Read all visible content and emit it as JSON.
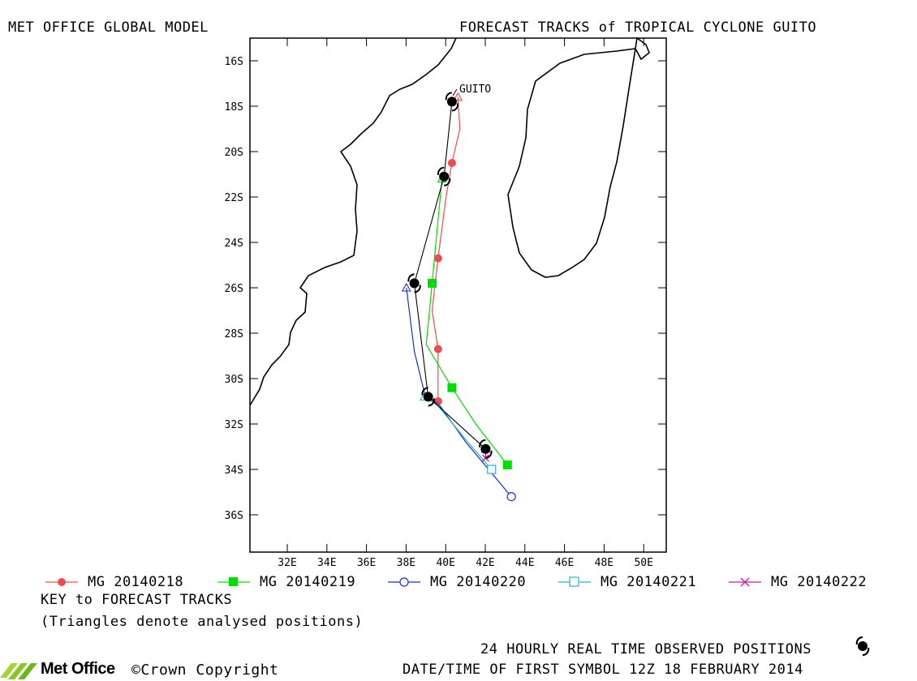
{
  "header": {
    "left_title": "MET OFFICE GLOBAL MODEL",
    "right_title": "FORECAST TRACKS of TROPICAL CYCLONE GUITO"
  },
  "map": {
    "storm_label": "GUITO",
    "lat_ticks": [
      "16S",
      "18S",
      "20S",
      "22S",
      "24S",
      "26S",
      "28S",
      "30S",
      "32S",
      "34S",
      "36S"
    ],
    "lon_ticks": [
      "32E",
      "34E",
      "36E",
      "38E",
      "40E",
      "42E",
      "44E",
      "46E",
      "48E",
      "50E"
    ],
    "lon_range": [
      30,
      52
    ],
    "lat_range": [
      -15,
      -37
    ]
  },
  "legend": {
    "items": [
      {
        "label": "MG 20140218",
        "color": "#f04a4a",
        "marker": "filled-circle"
      },
      {
        "label": "MG 20140219",
        "color": "#00dd00",
        "marker": "filled-square"
      },
      {
        "label": "MG 20140220",
        "color": "#1a2fc4",
        "marker": "open-circle"
      },
      {
        "label": "MG 20140221",
        "color": "#22b8c8",
        "marker": "open-square"
      },
      {
        "label": "MG 20140222",
        "color": "#c81a9a",
        "marker": "cross"
      }
    ],
    "key_title": "KEY to FORECAST TRACKS",
    "key_note": "(Triangles denote analysed positions)"
  },
  "footer": {
    "logo_text": "Met Office",
    "copyright": "©Crown Copyright",
    "observed_label": "24 HOURLY REAL TIME OBSERVED POSITIONS",
    "datetime_label": "DATE/TIME OF FIRST SYMBOL 12Z 18 FEBRUARY 2014"
  },
  "chart_data": {
    "type": "map-tracks",
    "observed": [
      {
        "lon": 40.3,
        "lat": -17.8
      },
      {
        "lon": 39.9,
        "lat": -21.1
      },
      {
        "lon": 38.4,
        "lat": -25.8
      },
      {
        "lon": 39.1,
        "lat": -30.8
      },
      {
        "lon": 42.0,
        "lat": -33.1
      }
    ],
    "tracks": [
      {
        "name": "MG 20140218",
        "color": "#f04a4a",
        "path": [
          [
            40.6,
            -17.6
          ],
          [
            40.7,
            -19.0
          ],
          [
            40.3,
            -20.5
          ],
          [
            40.0,
            -22.0
          ],
          [
            39.6,
            -24.7
          ],
          [
            39.3,
            -27.0
          ],
          [
            39.6,
            -28.7
          ],
          [
            39.6,
            -31.0
          ]
        ],
        "markers": [
          [
            40.3,
            -20.5
          ],
          [
            39.6,
            -24.7
          ],
          [
            39.6,
            -28.7
          ],
          [
            39.6,
            -31.0
          ]
        ]
      },
      {
        "name": "MG 20140219",
        "color": "#00dd00",
        "path": [
          [
            39.8,
            -21.2
          ],
          [
            39.6,
            -23.0
          ],
          [
            39.3,
            -25.8
          ],
          [
            39.0,
            -28.5
          ],
          [
            40.3,
            -30.4
          ],
          [
            41.5,
            -32.0
          ],
          [
            43.1,
            -33.8
          ]
        ],
        "markers": [
          [
            39.3,
            -25.8
          ],
          [
            40.3,
            -30.4
          ],
          [
            43.1,
            -33.8
          ]
        ]
      },
      {
        "name": "MG 20140220",
        "color": "#1a2fc4",
        "path": [
          [
            38.0,
            -26.0
          ],
          [
            38.4,
            -28.8
          ],
          [
            38.9,
            -30.6
          ],
          [
            39.7,
            -31.2
          ],
          [
            41.0,
            -32.8
          ],
          [
            43.3,
            -35.2
          ]
        ],
        "markers": [
          [
            43.3,
            -35.2
          ]
        ]
      },
      {
        "name": "MG 20140221",
        "color": "#22b8c8",
        "path": [
          [
            38.9,
            -30.8
          ],
          [
            39.6,
            -31.2
          ],
          [
            41.2,
            -32.9
          ],
          [
            42.3,
            -34.0
          ]
        ],
        "markers": [
          [
            42.3,
            -34.0
          ]
        ]
      },
      {
        "name": "MG 20140222",
        "color": "#c81a9a",
        "path": [
          [
            42.0,
            -33.1
          ],
          [
            42.0,
            -33.5
          ]
        ],
        "markers": [
          [
            42.0,
            -33.5
          ]
        ]
      }
    ]
  }
}
